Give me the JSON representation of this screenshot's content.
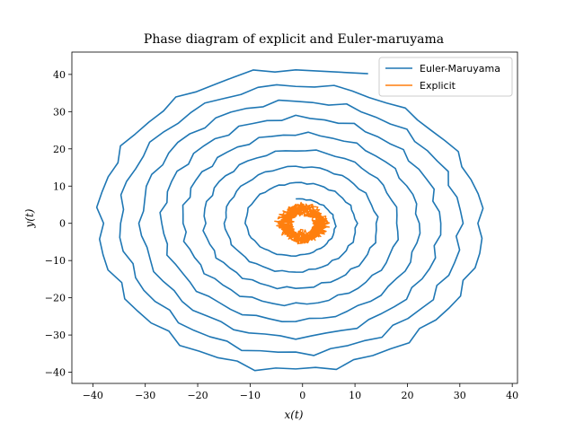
{
  "chart_data": {
    "type": "line",
    "title": "Phase diagram of explicit and Euler-maruyama",
    "xlabel": "x(t)",
    "ylabel": "y(t)",
    "xlim": [
      -44,
      41
    ],
    "ylim": [
      -43,
      46
    ],
    "xticks": [
      -40,
      -30,
      -20,
      -10,
      0,
      10,
      20,
      30,
      40
    ],
    "yticks": [
      -40,
      -30,
      -20,
      -10,
      0,
      10,
      20,
      30,
      40
    ],
    "grid": false,
    "legend_position": "top-right",
    "series": [
      {
        "name": "Euler-Maruyama",
        "color": "#1f77b4",
        "spiral": {
          "center": [
            -1.3,
            0
          ],
          "turns": 8,
          "outer_rx": 38.5,
          "outer_ry": 41.5,
          "inner_rx": 6.5,
          "inner_ry": 6.5,
          "end_point": [
            12.5,
            40.2
          ],
          "points_per_turn": 60
        }
      },
      {
        "name": "Explicit",
        "color": "#ff7f0e",
        "cloud": {
          "center": [
            0,
            0
          ],
          "rx_min": 2.0,
          "rx_max": 5.0,
          "ry_min": 2.0,
          "ry_max": 5.5,
          "loops": 12,
          "points_per_loop": 50
        }
      }
    ]
  }
}
